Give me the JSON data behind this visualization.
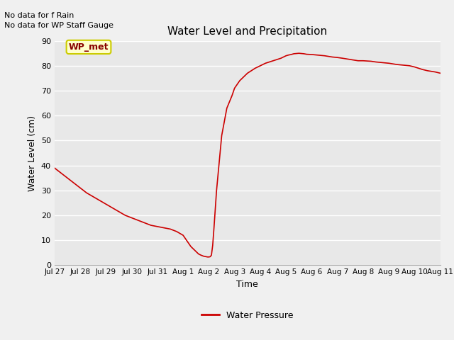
{
  "title": "Water Level and Precipitation",
  "xlabel": "Time",
  "ylabel": "Water Level (cm)",
  "ylim": [
    0,
    90
  ],
  "fig_bg_color": "#f0f0f0",
  "plot_bg_color": "#e8e8e8",
  "line_color": "#cc0000",
  "line_width": 1.2,
  "legend_label": "Water Pressure",
  "legend_line_color": "#cc0000",
  "no_data_texts": [
    "No data for f Rain",
    "No data for WP Staff Gauge"
  ],
  "wp_met_label": "WP_met",
  "wp_met_bg": "#ffffcc",
  "wp_met_border": "#cccc00",
  "wp_met_text_color": "#880000",
  "tick_labels": [
    "Jul 27",
    "Jul 28",
    "Jul 29",
    "Jul 30",
    "Jul 31",
    "Aug 1",
    "Aug 2",
    "Aug 3",
    "Aug 4",
    "Aug 5",
    "Aug 6",
    "Aug 7",
    "Aug 8",
    "Aug 9",
    "Aug 10",
    "Aug 11"
  ],
  "x_pts": [
    0,
    0.25,
    0.5,
    0.75,
    1.0,
    1.25,
    1.5,
    1.75,
    2.0,
    2.25,
    2.5,
    2.75,
    3.0,
    3.25,
    3.5,
    3.75,
    4.0,
    4.25,
    4.5,
    4.75,
    5.0,
    5.1,
    5.2,
    5.3,
    5.4,
    5.5,
    5.6,
    5.7,
    5.75,
    5.8,
    5.85,
    5.9,
    5.95,
    6.0,
    6.05,
    6.1,
    6.15,
    6.2,
    6.3,
    6.5,
    6.7,
    6.9,
    7.0,
    7.2,
    7.5,
    7.8,
    8.0,
    8.2,
    8.5,
    8.8,
    9.0,
    9.1,
    9.2,
    9.3,
    9.5,
    9.7,
    9.8,
    10.0,
    10.2,
    10.5,
    10.8,
    11.0,
    11.2,
    11.5,
    11.8,
    12.0,
    12.3,
    12.5,
    12.8,
    13.0,
    13.3,
    13.5,
    13.8,
    14.0,
    14.3,
    14.5,
    14.8,
    15.0
  ],
  "y_pts": [
    39,
    37,
    35,
    33,
    31,
    29,
    27.5,
    26,
    24.5,
    23,
    21.5,
    20,
    19,
    18,
    17,
    16,
    15.5,
    15,
    14.5,
    13.5,
    12,
    10.5,
    9,
    7.5,
    6.5,
    5.5,
    4.5,
    4.0,
    3.8,
    3.6,
    3.5,
    3.4,
    3.3,
    3.3,
    3.4,
    4.0,
    8.0,
    15,
    30,
    52,
    63,
    68,
    71,
    74,
    77,
    79,
    80,
    81,
    82,
    83,
    84,
    84.3,
    84.5,
    84.8,
    85.0,
    84.8,
    84.6,
    84.5,
    84.3,
    84.0,
    83.5,
    83.3,
    83.0,
    82.5,
    82.0,
    82.0,
    81.8,
    81.5,
    81.2,
    81.0,
    80.5,
    80.3,
    80.0,
    79.5,
    78.5,
    78.0,
    77.5,
    77.0
  ]
}
